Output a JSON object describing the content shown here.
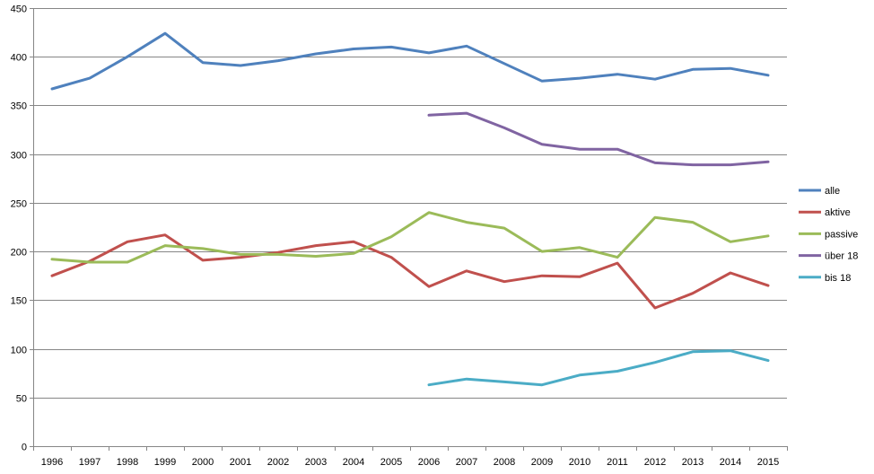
{
  "chart_data": {
    "type": "line",
    "title": "",
    "xlabel": "",
    "ylabel": "",
    "ylim": [
      0,
      450
    ],
    "y_ticks": [
      0,
      50,
      100,
      150,
      200,
      250,
      300,
      350,
      400,
      450
    ],
    "categories": [
      "1996",
      "1997",
      "1998",
      "1999",
      "2000",
      "2001",
      "2002",
      "2003",
      "2004",
      "2005",
      "2006",
      "2007",
      "2008",
      "2009",
      "2010",
      "2011",
      "2012",
      "2013",
      "2014",
      "2015"
    ],
    "grid": "horizontal",
    "legend": "right",
    "series": [
      {
        "name": "alle",
        "color": "#4F81BD",
        "values": [
          367,
          378,
          400,
          424,
          394,
          391,
          396,
          403,
          408,
          410,
          404,
          411,
          393,
          375,
          378,
          382,
          377,
          387,
          388,
          381
        ]
      },
      {
        "name": "aktive",
        "color": "#C0504D",
        "values": [
          175,
          190,
          210,
          217,
          191,
          194,
          199,
          206,
          210,
          194,
          164,
          180,
          169,
          175,
          174,
          188,
          142,
          157,
          178,
          165
        ]
      },
      {
        "name": "passive",
        "color": "#9BBB59",
        "values": [
          192,
          189,
          189,
          206,
          203,
          197,
          197,
          195,
          198,
          215,
          240,
          230,
          224,
          200,
          204,
          194,
          235,
          230,
          210,
          216
        ]
      },
      {
        "name": "über 18",
        "color": "#8064A2",
        "values": [
          null,
          null,
          null,
          null,
          null,
          null,
          null,
          null,
          null,
          null,
          340,
          342,
          327,
          310,
          305,
          305,
          291,
          289,
          289,
          292
        ]
      },
      {
        "name": "bis 18",
        "color": "#4BACC6",
        "values": [
          null,
          null,
          null,
          null,
          null,
          null,
          null,
          null,
          null,
          null,
          63,
          69,
          66,
          63,
          73,
          77,
          86,
          97,
          98,
          88
        ]
      }
    ]
  }
}
